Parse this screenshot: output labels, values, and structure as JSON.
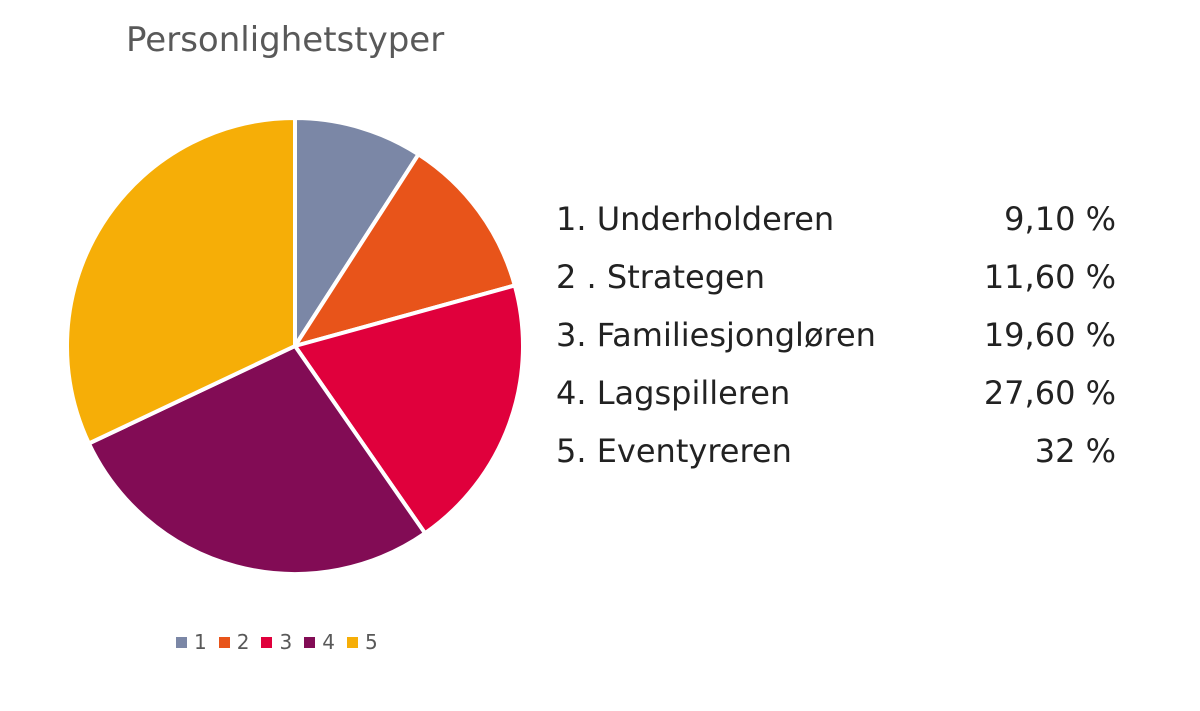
{
  "chart_data": {
    "type": "pie",
    "title": "Personlighetstyper",
    "categories": [
      "1",
      "2",
      "3",
      "4",
      "5"
    ],
    "values": [
      9.1,
      11.6,
      19.6,
      27.6,
      32
    ],
    "colors": [
      "#7b87a6",
      "#e8541a",
      "#e0003c",
      "#820c55",
      "#f6ae07"
    ],
    "legend_position": "bottom",
    "start_angle_deg": 0,
    "direction": "clockwise"
  },
  "table": {
    "rows": [
      {
        "label": "1. Underholderen",
        "value": "9,10 %"
      },
      {
        "label": "2 . Strategen",
        "value": "11,60 %"
      },
      {
        "label": "3. Familiesjongløren",
        "value": "19,60 %"
      },
      {
        "label": "4. Lagspilleren",
        "value": "27,60 %"
      },
      {
        "label": "5. Eventyreren",
        "value": "32 %"
      }
    ]
  }
}
